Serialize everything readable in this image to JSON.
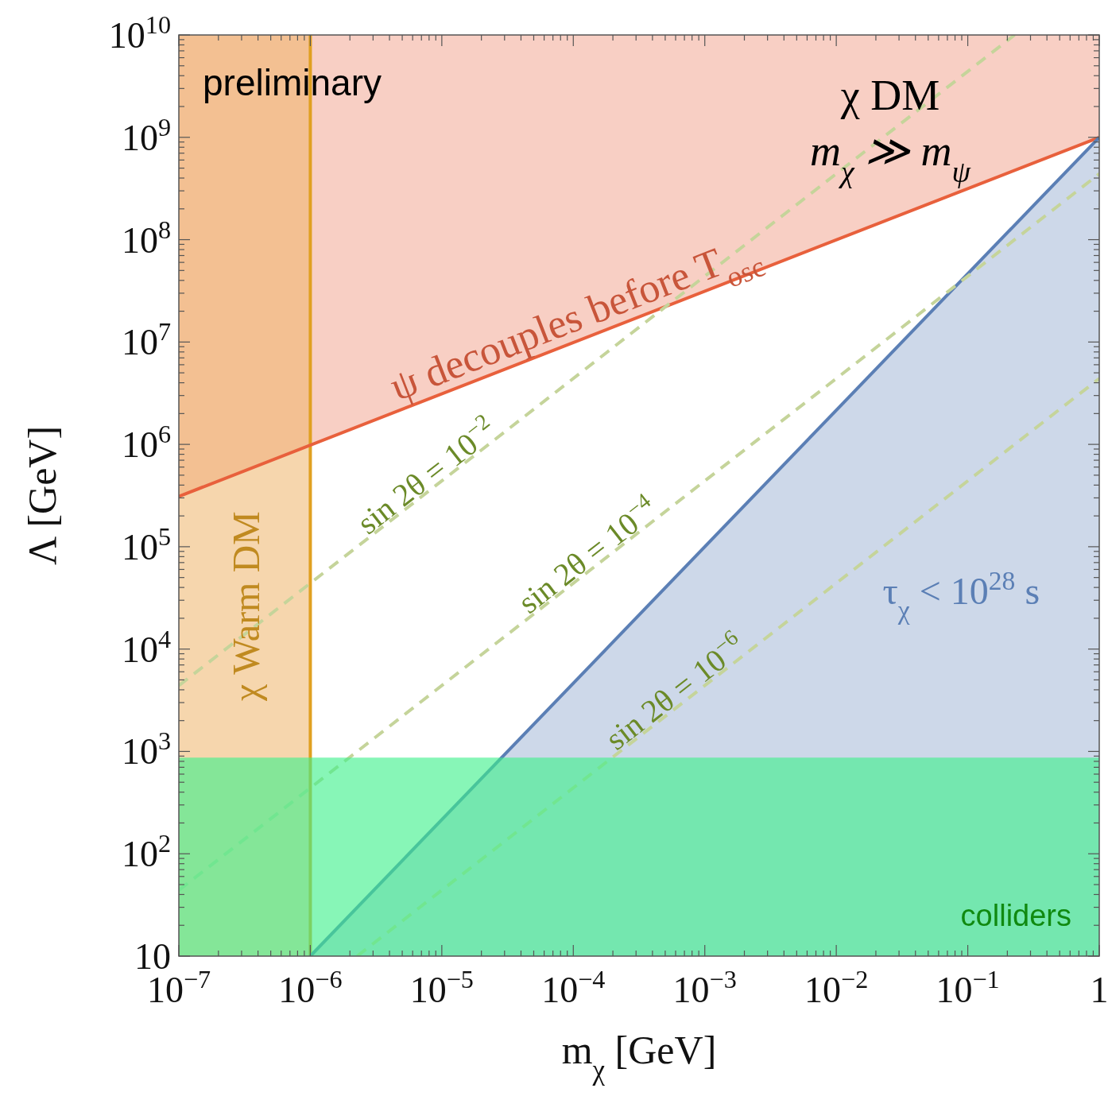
{
  "chart_data": {
    "type": "line",
    "xlabel": "m$_{χ}$ [GeV]",
    "ylabel": "Λ [GeV]",
    "log": "xy",
    "xlim": [
      1e-07,
      1
    ],
    "ylim": [
      10,
      10000000000.0
    ],
    "xticks": [
      {
        "value": 1e-07,
        "label": "10$^{−7}$"
      },
      {
        "value": 1e-06,
        "label": "10$^{−6}$"
      },
      {
        "value": 1e-05,
        "label": "10$^{−5}$"
      },
      {
        "value": 0.0001,
        "label": "10$^{−4}$"
      },
      {
        "value": 0.001,
        "label": "10$^{−3}$"
      },
      {
        "value": 0.01,
        "label": "10$^{−2}$"
      },
      {
        "value": 0.1,
        "label": "10$^{−1}$"
      },
      1
    ],
    "yticks": [
      10,
      {
        "value": 100,
        "label": "10$^{2}$"
      },
      {
        "value": 1000.0,
        "label": "10$^{3}$"
      },
      {
        "value": 10000.0,
        "label": "10$^{4}$"
      },
      {
        "value": 100000.0,
        "label": "10$^{5}$"
      },
      {
        "value": 1000000.0,
        "label": "10$^{6}$"
      },
      {
        "value": 10000000.0,
        "label": "10$^{7}$"
      },
      {
        "value": 100000000.0,
        "label": "10$^{8}$"
      },
      {
        "value": 1000000000.0,
        "label": "10$^{9}$"
      },
      {
        "value": 10000000000.0,
        "label": "10$^{10}$"
      }
    ],
    "series": [
      {
        "name": "ψ decouples before T$_{osc}$",
        "color": "#e8603c",
        "x": [
          1e-07,
          1
        ],
        "values": [
          310000.0,
          1000000000.0
        ],
        "lower": [
          310000.0,
          1000000000.0
        ],
        "upper": [
          10000000000.0,
          10000000000.0
        ]
      },
      {
        "name": "τ$_{χ}$ < 10$^{28}$ s",
        "color": "#5b7fb5",
        "x": [
          1e-06,
          1
        ],
        "values": [
          10,
          1000000000.0
        ],
        "lower": [
          10,
          10
        ],
        "upper": [
          10,
          1000000000.0
        ]
      },
      {
        "name": "sin 2θ = 10$^{−2}$",
        "color": "#c5d49a",
        "line_style": "dashed",
        "x": [
          1e-07,
          0.227
        ],
        "values": [
          4400,
          10000000000.0
        ]
      },
      {
        "name": "sin 2θ = 10$^{−4}$",
        "color": "#c5d49a",
        "line_style": "dashed",
        "x": [
          1e-07,
          1
        ],
        "values": [
          44,
          440000000.0
        ]
      },
      {
        "name": "sin 2θ = 10$^{−6}$",
        "color": "#c5d49a",
        "line_style": "dashed",
        "x": [
          2.27e-06,
          1
        ],
        "values": [
          10,
          4400000.0
        ]
      }
    ],
    "bands": [
      {
        "axis": "x",
        "from": 1e-07,
        "to": 1e-06,
        "label": "χ Warm DM",
        "color": "#eeb56a"
      },
      {
        "axis": "y",
        "from": 10,
        "to": 870,
        "label": "colliders",
        "color": "#3ef08a"
      }
    ],
    "ref_lines": [
      {
        "axis": "x",
        "value": 1e-06,
        "color": "#e0a020"
      }
    ],
    "annotations": [
      "preliminary",
      "χ DM",
      "m$_{χ}$ ≫ m$_{ψ}$"
    ]
  }
}
